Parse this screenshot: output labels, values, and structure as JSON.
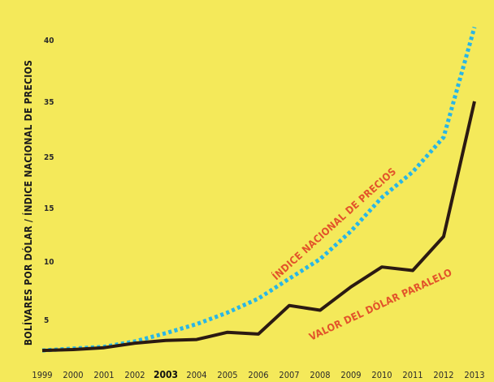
{
  "chart_data": {
    "type": "line",
    "title": "",
    "ylabel": "BOLÍVARES POR DÓLAR / ÍNDICE NACIONAL DE PRECIOS",
    "xlabel": "",
    "x": [
      "1999",
      "2000",
      "2001",
      "2002",
      "2003",
      "2004",
      "2005",
      "2006",
      "2007",
      "2008",
      "2009",
      "2010",
      "2011",
      "2012",
      "2013"
    ],
    "highlight_x": "2003",
    "ytick_labels": [
      "5",
      "10",
      "15",
      "25",
      "35",
      "40"
    ],
    "grid": false,
    "legend": "none",
    "series": [
      {
        "name": "ÍNDICE NACIONAL DE PRECIOS",
        "style": "dotted",
        "color": "#29b6e6",
        "values": [
          1.6,
          1.8,
          2.0,
          2.6,
          3.5,
          4.5,
          5.6,
          6.8,
          8.5,
          10.2,
          12.8,
          17.0,
          22.0,
          28.5,
          42.0
        ]
      },
      {
        "name": "VALOR DEL DÓLAR PARALELO",
        "style": "solid",
        "color": "#2b1a12",
        "values": [
          1.6,
          1.7,
          1.9,
          2.4,
          2.7,
          2.8,
          3.6,
          3.4,
          6.2,
          5.8,
          7.8,
          9.5,
          9.2,
          12.3,
          35.0
        ]
      }
    ]
  }
}
